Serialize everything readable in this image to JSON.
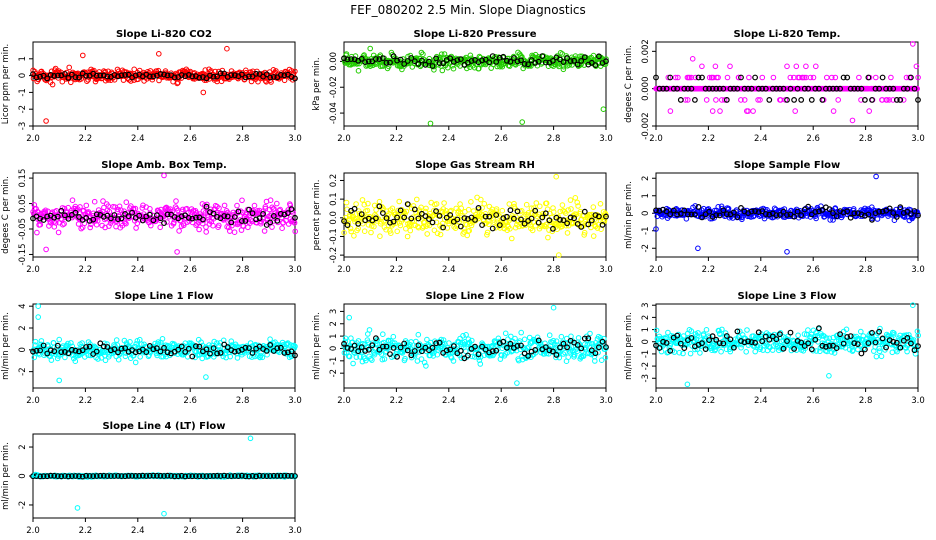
{
  "figure_title": "FEF_080202  2.5 Min. Slope Diagnostics",
  "colors": {
    "red": "#ff0000",
    "green": "#22cc00",
    "magenta": "#ff00ff",
    "yellow": "#ffff00",
    "blue": "#0000ff",
    "cyan": "#00ffff",
    "black": "#000000"
  },
  "chart_data": [
    {
      "type": "scatter",
      "title": "Slope Li-820 CO2",
      "ylabel": "Licor ppm per min.",
      "xlim": [
        2.0,
        3.0
      ],
      "ylim": [
        -3,
        2
      ],
      "xticks": [
        "2.0",
        "2.2",
        "2.4",
        "2.6",
        "2.8",
        "3.0"
      ],
      "yticks": [
        "-3",
        "-2",
        "-1",
        "0",
        "1"
      ],
      "color": "red",
      "y_center": 0.0,
      "y_spread": 0.35,
      "black_spread": 0.15,
      "outliers": [
        [
          2.05,
          -2.7
        ],
        [
          2.19,
          1.2
        ],
        [
          2.74,
          1.6
        ],
        [
          2.48,
          1.3
        ],
        [
          2.65,
          -1.0
        ]
      ]
    },
    {
      "type": "scatter",
      "title": "Slope Li-820 Pressure",
      "ylabel": "kPa per min.",
      "xlim": [
        2.0,
        3.0
      ],
      "ylim": [
        -0.05,
        0.015
      ],
      "xticks": [
        "2.0",
        "2.2",
        "2.4",
        "2.6",
        "2.8",
        "3.0"
      ],
      "yticks": [
        "-0.04",
        "-0.02",
        "0.00"
      ],
      "color": "green",
      "y_center": 0.0,
      "y_spread": 0.005,
      "black_spread": 0.004,
      "outliers": [
        [
          2.33,
          -0.048
        ],
        [
          2.68,
          -0.047
        ],
        [
          2.99,
          -0.037
        ],
        [
          2.1,
          0.01
        ]
      ]
    },
    {
      "type": "scatter",
      "title": "Slope Li-820 Temp.",
      "ylabel": "degees C per min.",
      "xlim": [
        2.0,
        3.0
      ],
      "ylim": [
        -0.002,
        0.0025
      ],
      "xticks": [
        "2.0",
        "2.2",
        "2.4",
        "2.6",
        "2.8",
        "3.0"
      ],
      "yticks": [
        "-0.002",
        "0.000",
        "0.002"
      ],
      "color": "magenta",
      "y_center": 0.0,
      "y_spread": 0.0,
      "black_spread": 0.0,
      "outliers": [
        [
          2.98,
          0.0024
        ],
        [
          2.5,
          0.0012
        ],
        [
          2.75,
          -0.0017
        ],
        [
          2.14,
          0.0016
        ]
      ]
    },
    {
      "type": "scatter",
      "title": "Slope Amb. Box Temp.",
      "ylabel": "degees C per min.",
      "xlim": [
        2.0,
        3.0
      ],
      "ylim": [
        -0.16,
        0.17
      ],
      "xticks": [
        "2.0",
        "2.2",
        "2.4",
        "2.6",
        "2.8",
        "3.0"
      ],
      "yticks": [
        "-0.15",
        "-0.05",
        "0.05",
        "0.15"
      ],
      "color": "magenta",
      "y_center": 0.0,
      "y_spread": 0.05,
      "black_spread": 0.03,
      "outliers": [
        [
          2.5,
          0.16
        ],
        [
          2.55,
          -0.14
        ],
        [
          2.05,
          -0.13
        ]
      ]
    },
    {
      "type": "scatter",
      "title": "Slope Gas Stream RH",
      "ylabel": "percent per min.",
      "xlim": [
        2.0,
        3.0
      ],
      "ylim": [
        -0.21,
        0.24
      ],
      "xticks": [
        "2.0",
        "2.2",
        "2.4",
        "2.6",
        "2.8",
        "3.0"
      ],
      "yticks": [
        "-0.2",
        "-0.1",
        "0.0",
        "0.1",
        "0.2"
      ],
      "color": "yellow",
      "y_center": 0.0,
      "y_spread": 0.08,
      "black_spread": 0.06,
      "outliers": [
        [
          2.81,
          0.22
        ],
        [
          2.82,
          -0.2
        ]
      ]
    },
    {
      "type": "scatter",
      "title": "Slope Sample Flow",
      "ylabel": "ml/min per min.",
      "xlim": [
        2.0,
        3.0
      ],
      "ylim": [
        -2.5,
        2.3
      ],
      "xticks": [
        "2.0",
        "2.2",
        "2.4",
        "2.6",
        "2.8",
        "3.0"
      ],
      "yticks": [
        "-2",
        "-1",
        "0",
        "1",
        "2"
      ],
      "color": "blue",
      "y_center": 0.0,
      "y_spread": 0.3,
      "black_spread": 0.3,
      "outliers": [
        [
          2.84,
          2.1
        ],
        [
          2.16,
          -2.0
        ],
        [
          2.5,
          -2.2
        ],
        [
          2.0,
          -0.9
        ]
      ]
    },
    {
      "type": "scatter",
      "title": "Slope Line 1 Flow",
      "ylabel": "ml/min per min.",
      "xlim": [
        2.0,
        3.0
      ],
      "ylim": [
        -3.5,
        4.2
      ],
      "xticks": [
        "2.0",
        "2.2",
        "2.4",
        "2.6",
        "2.8",
        "3.0"
      ],
      "yticks": [
        "-2",
        "0",
        "2",
        "4"
      ],
      "color": "cyan",
      "y_center": 0.0,
      "y_spread": 0.8,
      "black_spread": 0.5,
      "outliers": [
        [
          2.02,
          4.0
        ],
        [
          2.02,
          3.0
        ],
        [
          2.1,
          -2.8
        ],
        [
          2.66,
          -2.5
        ]
      ]
    },
    {
      "type": "scatter",
      "title": "Slope Line 2 Flow",
      "ylabel": "ml/min per min.",
      "xlim": [
        2.0,
        3.0
      ],
      "ylim": [
        -3.2,
        3.6
      ],
      "xticks": [
        "2.0",
        "2.2",
        "2.4",
        "2.6",
        "2.8",
        "3.0"
      ],
      "yticks": [
        "-2",
        "-1",
        "0",
        "1",
        "2",
        "3"
      ],
      "color": "cyan",
      "y_center": 0.0,
      "y_spread": 1.0,
      "black_spread": 0.7,
      "outliers": [
        [
          2.8,
          3.3
        ],
        [
          2.02,
          2.5
        ],
        [
          2.66,
          -2.8
        ]
      ]
    },
    {
      "type": "scatter",
      "title": "Slope Line 3 Flow",
      "ylabel": "ml/min per min.",
      "xlim": [
        2.0,
        3.0
      ],
      "ylim": [
        -3.8,
        3.1
      ],
      "xticks": [
        "2.0",
        "2.2",
        "2.4",
        "2.6",
        "2.8",
        "3.0"
      ],
      "yticks": [
        "-3",
        "-2",
        "-1",
        "0",
        "1",
        "2",
        "3"
      ],
      "color": "cyan",
      "y_center": 0.0,
      "y_spread": 0.9,
      "black_spread": 0.9,
      "outliers": [
        [
          2.12,
          -3.5
        ],
        [
          2.98,
          3.0
        ],
        [
          2.66,
          -2.8
        ]
      ]
    },
    {
      "type": "scatter",
      "title": "Slope Line 4 (LT) Flow",
      "ylabel": "ml/min per min.",
      "xlim": [
        2.0,
        3.0
      ],
      "ylim": [
        -2.9,
        2.9
      ],
      "xticks": [
        "2.0",
        "2.2",
        "2.4",
        "2.6",
        "2.8",
        "3.0"
      ],
      "yticks": [
        "-2",
        "0",
        "2"
      ],
      "color": "cyan",
      "y_center": 0.0,
      "y_spread": 0.05,
      "black_spread": 0.03,
      "outliers": [
        [
          2.83,
          2.6
        ],
        [
          2.17,
          -2.2
        ],
        [
          2.5,
          -2.6
        ],
        [
          2.01,
          0.1
        ]
      ]
    }
  ]
}
